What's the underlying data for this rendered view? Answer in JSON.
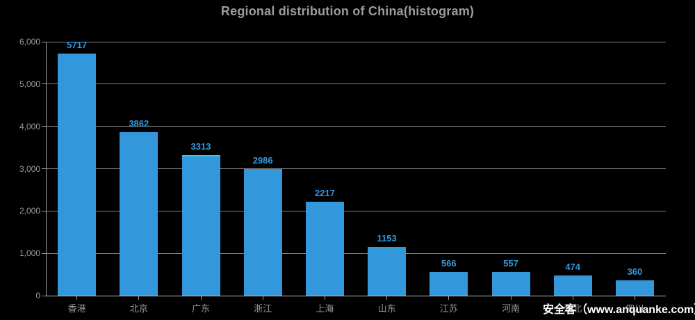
{
  "title": "Regional distribution of China(histogram)",
  "watermark": "安全客（www.anquanke.com）",
  "colors": {
    "background": "#000000",
    "bar": "#3398DB",
    "bar_highlight_top": "#2AC6EC",
    "value_label": "#3398DB",
    "title_text": "#9C9C9C",
    "axis_label": "#999999",
    "gridline": "#828282",
    "x_axis_line": "#C0C0C0",
    "y_axis_line": "#999999",
    "tick": "#999999",
    "watermark_text": "#FFFFFF"
  },
  "chart_data": {
    "type": "bar",
    "title": "Regional distribution of China(histogram)",
    "categories": [
      "香港",
      "北京",
      "广东",
      "浙江",
      "上海",
      "山东",
      "江苏",
      "河南",
      "湖北",
      "四川"
    ],
    "values": [
      5717,
      3862,
      3313,
      2986,
      2217,
      1153,
      566,
      557,
      474,
      360
    ],
    "value_labels": [
      "5717",
      "3862",
      "3313",
      "2986",
      "2217",
      "1153",
      "566",
      "557",
      "474",
      "360"
    ],
    "xlabel": "",
    "ylabel": "",
    "ylim": [
      0,
      6000
    ],
    "ytick_interval": 1000,
    "ytick_labels": [
      "0",
      "1,000",
      "2,000",
      "3,000",
      "4,000",
      "5,000",
      "6,000"
    ],
    "grid": true,
    "legend": false,
    "highlighted_category_index": 2
  }
}
